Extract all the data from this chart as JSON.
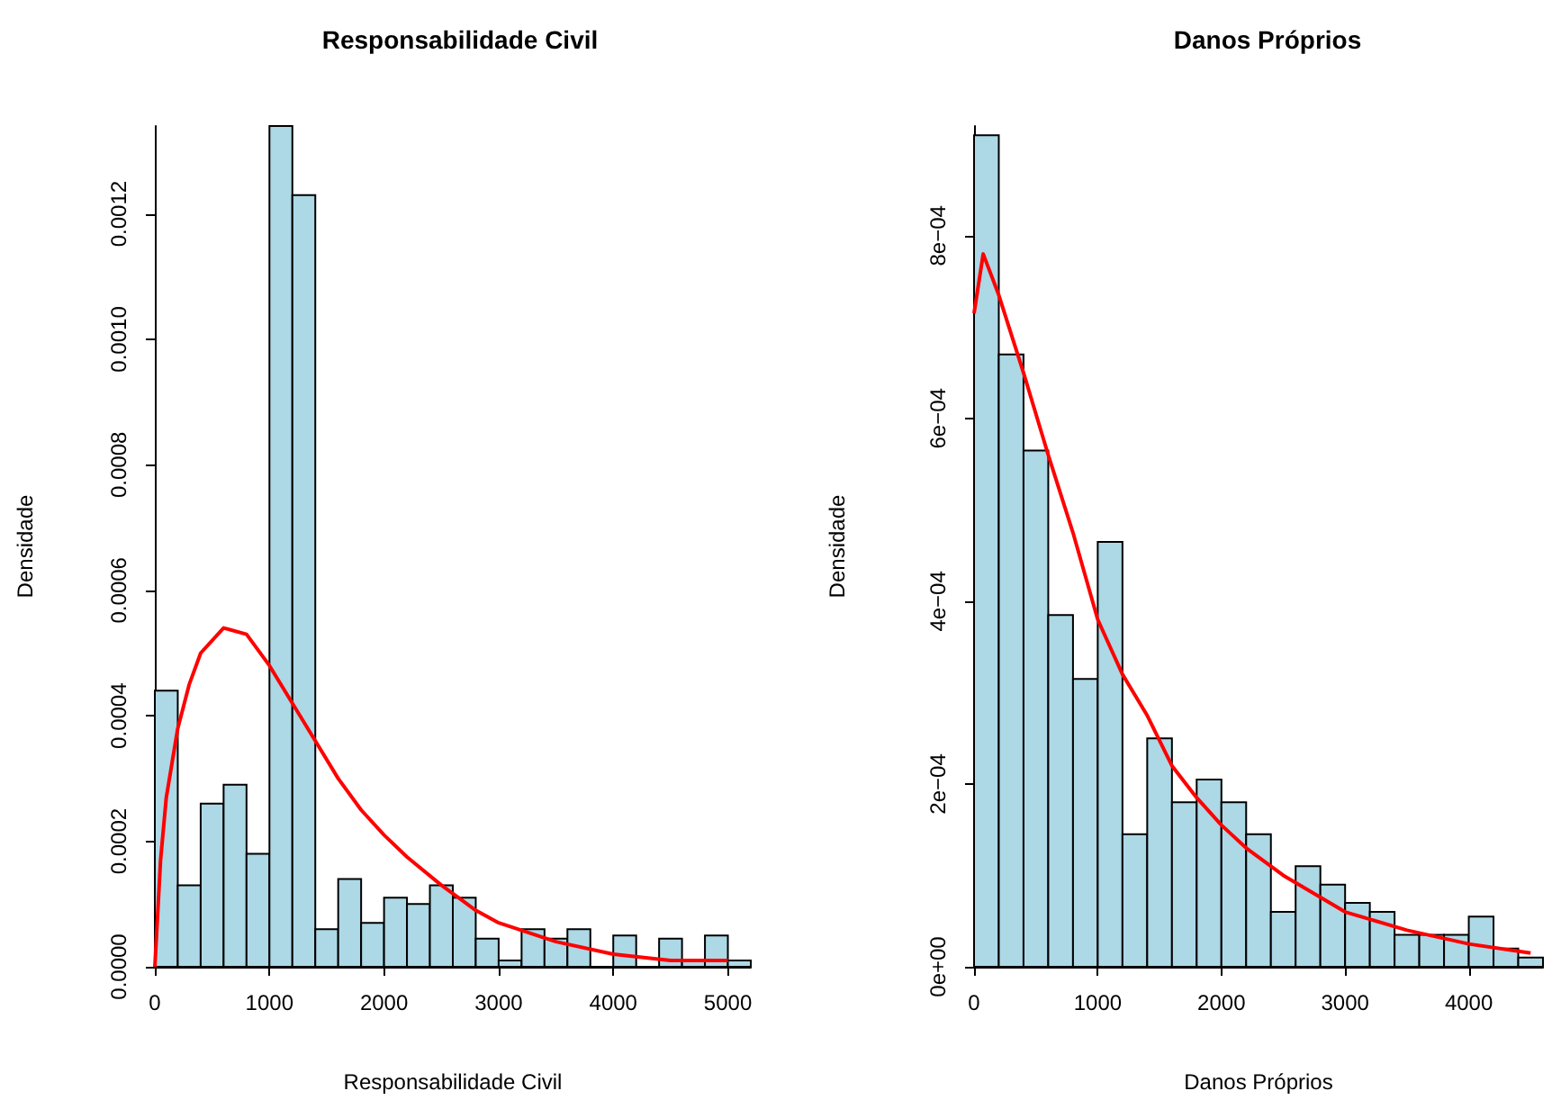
{
  "chart_data": [
    {
      "type": "histogram",
      "title": "Responsabilidade Civil",
      "xlabel": "Responsabilidade Civil",
      "ylabel": "Densidade",
      "bins": [
        0,
        200,
        400,
        600,
        800,
        1000,
        1200,
        1400,
        1600,
        1800,
        2000,
        2200,
        2400,
        2600,
        2800,
        3000,
        3200,
        3400,
        3600,
        3800,
        4000,
        4200,
        4400,
        4600,
        4800,
        5000,
        5200
      ],
      "series": [
        {
          "color": "#add8e6",
          "values": [
            0.00044,
            0.00013,
            0.00026,
            0.00029,
            0.00018,
            0.00134,
            0.00123,
            6e-05,
            0.00014,
            7e-05,
            0.00011,
            0.0001,
            0.00013,
            0.00011,
            4.5e-05,
            1e-05,
            6e-05,
            4.5e-05,
            6e-05,
            0,
            5e-05,
            0,
            4.5e-05,
            1e-05,
            5e-05,
            1e-05
          ]
        },
        {
          "type": "line",
          "color": "#ff0000",
          "x": [
            0,
            50,
            100,
            200,
            300,
            400,
            600,
            800,
            1000,
            1200,
            1400,
            1600,
            1800,
            2000,
            2200,
            2500,
            2800,
            3000,
            3500,
            4000,
            4500,
            5000
          ],
          "values": [
            0,
            0.00017,
            0.00027,
            0.00038,
            0.00045,
            0.0005,
            0.00054,
            0.00053,
            0.00048,
            0.00042,
            0.00036,
            0.0003,
            0.00025,
            0.00021,
            0.000175,
            0.00013,
            9e-05,
            7e-05,
            4e-05,
            2e-05,
            1e-05,
            1e-05
          ]
        }
      ],
      "xlim": [
        0,
        5200
      ],
      "xticks": [
        0,
        1000,
        2000,
        3000,
        4000,
        5000
      ],
      "ylim": [
        0,
        0.00134
      ],
      "yticks": [
        {
          "value": 0,
          "label": "0.0000"
        },
        {
          "value": 0.0002,
          "label": "0.0002"
        },
        {
          "value": 0.0004,
          "label": "0.0004"
        },
        {
          "value": 0.0006,
          "label": "0.0006"
        },
        {
          "value": 0.0008,
          "label": "0.0008"
        },
        {
          "value": 0.001,
          "label": "0.0010"
        },
        {
          "value": 0.0012,
          "label": "0.0012"
        }
      ],
      "grid": false
    },
    {
      "type": "histogram",
      "title": "Danos Próprios",
      "xlabel": "Danos Próprios",
      "ylabel": "Densidade",
      "bins": [
        0,
        200,
        400,
        600,
        800,
        1000,
        1200,
        1400,
        1600,
        1800,
        2000,
        2200,
        2400,
        2600,
        2800,
        3000,
        3200,
        3400,
        3600,
        3800,
        4000,
        4200,
        4400,
        4600
      ],
      "series": [
        {
          "color": "#add8e6",
          "values": [
            0.00091,
            0.00067,
            0.000565,
            0.000385,
            0.000315,
            0.000465,
            0.000145,
            0.00025,
            0.00018,
            0.000205,
            0.00018,
            0.000145,
            6e-05,
            0.00011,
            9e-05,
            7e-05,
            6e-05,
            3.5e-05,
            3.5e-05,
            3.5e-05,
            5.5e-05,
            2e-05,
            1e-05
          ]
        },
        {
          "type": "line",
          "color": "#ff0000",
          "x": [
            0,
            74,
            200,
            400,
            600,
            800,
            1000,
            1200,
            1400,
            1600,
            1800,
            2000,
            2200,
            2500,
            3000,
            3500,
            4000,
            4500
          ],
          "values": [
            0.000715,
            0.00078,
            0.000735,
            0.00065,
            0.00056,
            0.000475,
            0.00038,
            0.00032,
            0.000275,
            0.00022,
            0.000185,
            0.000155,
            0.00013,
            0.0001,
            6e-05,
            4e-05,
            2.5e-05,
            1.5e-05
          ]
        }
      ],
      "xlim": [
        0,
        4600
      ],
      "xticks": [
        0,
        1000,
        2000,
        3000,
        4000
      ],
      "ylim": [
        0,
        0.00092
      ],
      "yticks": [
        {
          "value": 0,
          "label": "0e+00"
        },
        {
          "value": 0.0002,
          "label": "2e−04"
        },
        {
          "value": 0.0004,
          "label": "4e−04"
        },
        {
          "value": 0.0006,
          "label": "6e−04"
        },
        {
          "value": 0.0008,
          "label": "8e−04"
        }
      ],
      "grid": false
    }
  ]
}
